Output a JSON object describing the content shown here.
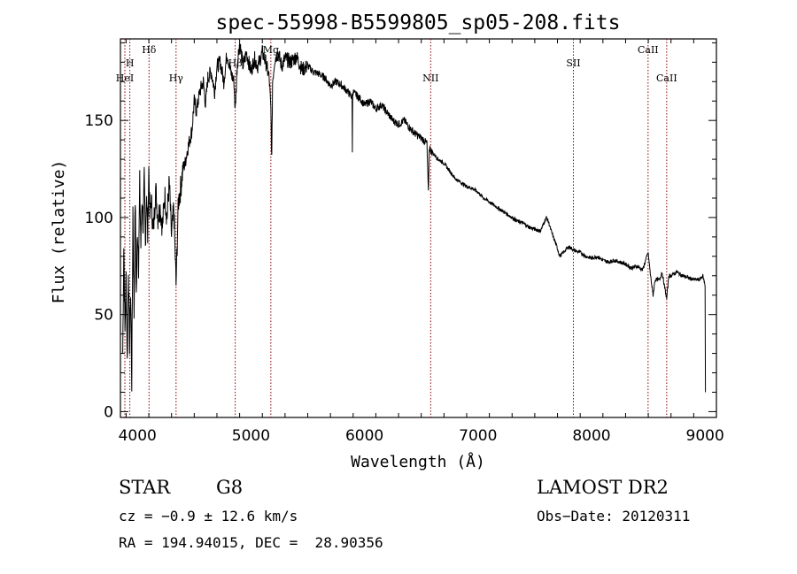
{
  "chart_data": {
    "type": "line",
    "title": "spec-55998-B5599805_sp05-208.fits",
    "xlabel": "Wavelength (Å)",
    "ylabel": "Flux (relative)",
    "xlim": [
      3850,
      9100
    ],
    "ylim": [
      -3,
      192
    ],
    "x_ticks": [
      4000,
      5000,
      6000,
      7000,
      8000,
      9000
    ],
    "y_ticks": [
      0,
      50,
      100,
      150
    ],
    "grid": false,
    "line_color": "#000000",
    "marker_color": "#8b0000",
    "series": [
      {
        "x": [
          3870,
          3880,
          3890,
          3900,
          3910,
          3920,
          3930,
          3940,
          3950,
          3960,
          3970,
          3980,
          3990,
          4000,
          4010,
          4020,
          4030,
          4040,
          4050,
          4060,
          4070,
          4080,
          4090,
          4100,
          4110,
          4120,
          4140,
          4160,
          4180,
          4200,
          4220,
          4240,
          4260,
          4280,
          4300,
          4320,
          4340,
          4360,
          4380,
          4400,
          4420,
          4440,
          4460,
          4480,
          4500,
          4520,
          4550,
          4580,
          4600,
          4620,
          4650,
          4680,
          4700,
          4730,
          4760,
          4790,
          4820,
          4850,
          4861,
          4880,
          4900,
          4930,
          4960,
          5000,
          5030,
          5060,
          5100,
          5130,
          5160,
          5175,
          5183,
          5190,
          5210,
          5240,
          5270,
          5300,
          5350,
          5400,
          5450,
          5500,
          5550,
          5600,
          5650,
          5700,
          5750,
          5800,
          5850,
          5890,
          5893,
          5896,
          5910,
          5950,
          6000,
          6050,
          6100,
          6150,
          6200,
          6250,
          6300,
          6350,
          6400,
          6450,
          6500,
          6520,
          6550,
          6563,
          6570,
          6590,
          6620,
          6650,
          6700,
          6750,
          6800,
          6850,
          6900,
          6950,
          7000,
          7050,
          7100,
          7150,
          7200,
          7250,
          7300,
          7350,
          7400,
          7450,
          7500,
          7550,
          7600,
          7620,
          7650,
          7700,
          7720,
          7750,
          7800,
          7850,
          7900,
          7950,
          8000,
          8050,
          8100,
          8150,
          8200,
          8250,
          8300,
          8350,
          8400,
          8450,
          8498,
          8520,
          8542,
          8560,
          8600,
          8620,
          8662,
          8680,
          8700,
          8750,
          8800,
          8850,
          8900,
          8950,
          8980,
          9000,
          9003
        ],
        "y": [
          30,
          85,
          40,
          70,
          25,
          75,
          35,
          60,
          15,
          105,
          50,
          110,
          60,
          95,
          75,
          118,
          85,
          110,
          95,
          120,
          85,
          115,
          90,
          125,
          100,
          110,
          92,
          115,
          100,
          105,
          95,
          112,
          100,
          118,
          90,
          105,
          65,
          108,
          115,
          125,
          128,
          135,
          140,
          145,
          160,
          155,
          165,
          170,
          158,
          172,
          175,
          165,
          178,
          180,
          170,
          185,
          175,
          170,
          155,
          180,
          190,
          178,
          185,
          175,
          182,
          178,
          185,
          180,
          172,
          155,
          130,
          170,
          182,
          185,
          178,
          182,
          180,
          183,
          176,
          178,
          175,
          174,
          172,
          168,
          170,
          168,
          165,
          162,
          135,
          165,
          164,
          162,
          158,
          160,
          156,
          158,
          154,
          150,
          148,
          150,
          146,
          143,
          141,
          140,
          138,
          112,
          136,
          134,
          132,
          130,
          128,
          124,
          120,
          118,
          116,
          115,
          113,
          110,
          108,
          106,
          104,
          102,
          100,
          98,
          97,
          95,
          94,
          93,
          100,
          98,
          92,
          84,
          80,
          82,
          85,
          83,
          82,
          80,
          79,
          80,
          78,
          77,
          78,
          77,
          76,
          74,
          75,
          73,
          82,
          70,
          60,
          68,
          68,
          72,
          58,
          70,
          70,
          72,
          70,
          69,
          68,
          68,
          70,
          65,
          10
        ]
      }
    ],
    "lines": [
      {
        "label": "HeI",
        "wavelength": 3889
      },
      {
        "label": "H",
        "wavelength": 3933
      },
      {
        "label": "Hδ",
        "wavelength": 4102
      },
      {
        "label": "Hγ",
        "wavelength": 4340
      },
      {
        "label": "Hβ",
        "wavelength": 4861
      },
      {
        "label": "Mg",
        "wavelength": 5175
      },
      {
        "label": "NII",
        "wavelength": 6583
      },
      {
        "label": "SII",
        "wavelength": 7840
      },
      {
        "label": "CaII",
        "wavelength": 8498
      },
      {
        "label": "CaII",
        "wavelength": 8662
      }
    ]
  },
  "footer": {
    "object_type": "STAR",
    "subclass": "G8",
    "survey": "LAMOST DR2",
    "cz": "cz = −0.9 ± 12.6 km/s",
    "obs_date": "Obs−Date: 20120311",
    "radec": "RA = 194.94015, DEC =  28.90356"
  }
}
